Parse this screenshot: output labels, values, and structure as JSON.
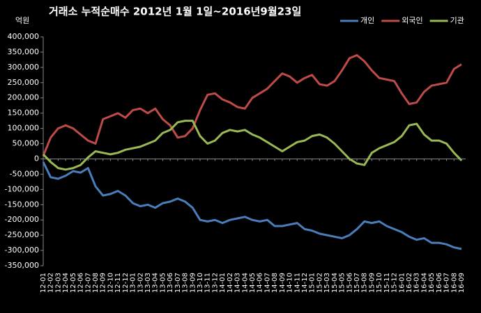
{
  "chart_data": {
    "type": "line",
    "title": "거래소  누적순매수 2012년 1월 1일~2016년9월23일",
    "y_label": "억원",
    "categories": [
      "12-01",
      "12-02",
      "12-03",
      "12-04",
      "12-05",
      "12-06",
      "12-07",
      "12-08",
      "12-09",
      "12-10",
      "12-11",
      "12-12",
      "13-01",
      "13-02",
      "13-03",
      "13-04",
      "13-05",
      "13-06",
      "13-07",
      "13-08",
      "13-09",
      "13-10",
      "13-11",
      "13-12",
      "14-01",
      "14-02",
      "14-03",
      "14-04",
      "14-05",
      "14-06",
      "14-07",
      "14-08",
      "14-09",
      "14-10",
      "14-11",
      "14-12",
      "15-01",
      "15-02",
      "15-03",
      "15-04",
      "15-05",
      "15-06",
      "15-07",
      "15-08",
      "15-09",
      "15-10",
      "15-11",
      "15-12",
      "16-01",
      "16-02",
      "16-03",
      "16-04",
      "16-05",
      "16-06",
      "16-07",
      "16-08",
      "16-09"
    ],
    "series": [
      {
        "name": "개인",
        "color": "#4a7ebb",
        "values": [
          -10000,
          -60000,
          -65000,
          -55000,
          -40000,
          -45000,
          -30000,
          -90000,
          -120000,
          -115000,
          -105000,
          -120000,
          -145000,
          -155000,
          -150000,
          -160000,
          -145000,
          -140000,
          -130000,
          -140000,
          -160000,
          -200000,
          -205000,
          -200000,
          -210000,
          -200000,
          -195000,
          -190000,
          -200000,
          -205000,
          -200000,
          -220000,
          -220000,
          -215000,
          -210000,
          -230000,
          -235000,
          -245000,
          -250000,
          -255000,
          -260000,
          -250000,
          -230000,
          -205000,
          -210000,
          -205000,
          -220000,
          -230000,
          -240000,
          -255000,
          -265000,
          -260000,
          -275000,
          -275000,
          -280000,
          -290000,
          -295000
        ]
      },
      {
        "name": "외국인",
        "color": "#be4b48",
        "values": [
          10000,
          70000,
          100000,
          110000,
          100000,
          80000,
          60000,
          50000,
          130000,
          140000,
          150000,
          135000,
          160000,
          165000,
          150000,
          165000,
          130000,
          110000,
          70000,
          75000,
          100000,
          160000,
          210000,
          215000,
          195000,
          185000,
          170000,
          165000,
          200000,
          215000,
          230000,
          255000,
          280000,
          270000,
          250000,
          265000,
          275000,
          245000,
          240000,
          255000,
          290000,
          330000,
          340000,
          320000,
          290000,
          265000,
          260000,
          255000,
          215000,
          180000,
          185000,
          220000,
          240000,
          245000,
          250000,
          295000,
          310000
        ]
      },
      {
        "name": "기관",
        "color": "#98b954",
        "values": [
          15000,
          -10000,
          -30000,
          -35000,
          -30000,
          -20000,
          5000,
          25000,
          20000,
          15000,
          20000,
          30000,
          35000,
          40000,
          50000,
          60000,
          85000,
          95000,
          120000,
          125000,
          125000,
          75000,
          50000,
          60000,
          85000,
          95000,
          90000,
          95000,
          80000,
          70000,
          55000,
          40000,
          25000,
          40000,
          55000,
          60000,
          75000,
          80000,
          70000,
          50000,
          25000,
          0,
          -15000,
          -20000,
          20000,
          35000,
          45000,
          55000,
          75000,
          110000,
          115000,
          80000,
          60000,
          60000,
          50000,
          20000,
          -5000
        ]
      }
    ],
    "ylim": [
      -350000,
      400000
    ],
    "yticks": [
      {
        "value": -350000,
        "label": "-350,000"
      },
      {
        "value": -300000,
        "label": "-300,000"
      },
      {
        "value": -250000,
        "label": "-250,000"
      },
      {
        "value": -200000,
        "label": "-200,000"
      },
      {
        "value": -150000,
        "label": "-150,000"
      },
      {
        "value": -100000,
        "label": "-100,000"
      },
      {
        "value": -50000,
        "label": "-50,000"
      },
      0,
      {
        "value": 50000,
        "label": "50,000"
      },
      {
        "value": 100000,
        "label": "100,000"
      },
      {
        "value": 150000,
        "label": "150,000"
      },
      {
        "value": 200000,
        "label": "200,000"
      },
      {
        "value": 250000,
        "label": "250,000"
      },
      {
        "value": 300000,
        "label": "300,000"
      },
      {
        "value": 350000,
        "label": "350,000"
      },
      {
        "value": 400000,
        "label": "400,000"
      }
    ],
    "grid": false,
    "legend": "top-right"
  }
}
